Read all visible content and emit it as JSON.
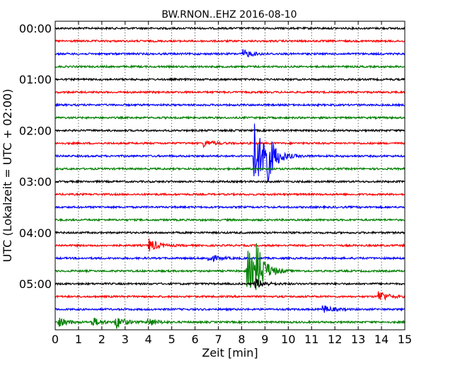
{
  "chart_data": {
    "type": "line",
    "title": "BW.RNON..EHZ 2016-08-10",
    "xlabel": "Zeit  [min]",
    "ylabel": "UTC (Lokalzeit = UTC + 02:00)",
    "xlim": [
      0,
      15
    ],
    "x_ticks": [
      0,
      1,
      2,
      3,
      4,
      5,
      6,
      7,
      8,
      9,
      10,
      11,
      12,
      13,
      14,
      15
    ],
    "y_tick_labels": [
      "00:00",
      "01:00",
      "02:00",
      "03:00",
      "04:00",
      "05:00"
    ],
    "grid": "vertical dotted",
    "colors": [
      "#000000",
      "#ff0000",
      "#0000ff",
      "#008000"
    ],
    "trace_interval_minutes": 15,
    "traces": [
      {
        "start": "00:00",
        "color": "#000000",
        "events": []
      },
      {
        "start": "00:15",
        "color": "#ff0000",
        "events": []
      },
      {
        "start": "00:30",
        "color": "#0000ff",
        "events": [
          {
            "time_min": 8.1,
            "amplitude": 0.3
          }
        ]
      },
      {
        "start": "00:45",
        "color": "#008000",
        "events": []
      },
      {
        "start": "01:00",
        "color": "#000000",
        "events": []
      },
      {
        "start": "01:15",
        "color": "#ff0000",
        "events": []
      },
      {
        "start": "01:30",
        "color": "#0000ff",
        "events": []
      },
      {
        "start": "01:45",
        "color": "#008000",
        "events": []
      },
      {
        "start": "02:00",
        "color": "#000000",
        "events": []
      },
      {
        "start": "02:15",
        "color": "#ff0000",
        "events": [
          {
            "time_min": 6.4,
            "amplitude": 0.25
          }
        ]
      },
      {
        "start": "02:30",
        "color": "#0000ff",
        "events": [
          {
            "time_min": 8.55,
            "amplitude": 2.7
          },
          {
            "time_min": 8.95,
            "amplitude": 2.4
          }
        ]
      },
      {
        "start": "02:45",
        "color": "#008000",
        "events": []
      },
      {
        "start": "03:00",
        "color": "#000000",
        "events": []
      },
      {
        "start": "03:15",
        "color": "#ff0000",
        "events": []
      },
      {
        "start": "03:30",
        "color": "#0000ff",
        "events": []
      },
      {
        "start": "03:45",
        "color": "#008000",
        "events": []
      },
      {
        "start": "04:00",
        "color": "#000000",
        "events": []
      },
      {
        "start": "04:15",
        "color": "#ff0000",
        "events": [
          {
            "time_min": 4.05,
            "amplitude": 0.5
          }
        ]
      },
      {
        "start": "04:30",
        "color": "#0000ff",
        "events": [
          {
            "time_min": 6.6,
            "amplitude": 0.3
          }
        ]
      },
      {
        "start": "04:45",
        "color": "#008000",
        "events": [
          {
            "time_min": 8.25,
            "amplitude": 1.8
          },
          {
            "time_min": 8.65,
            "amplitude": 1.6
          }
        ]
      },
      {
        "start": "05:00",
        "color": "#000000",
        "events": [
          {
            "time_min": 8.6,
            "amplitude": 0.4
          }
        ]
      },
      {
        "start": "05:15",
        "color": "#ff0000",
        "events": [
          {
            "time_min": 13.9,
            "amplitude": 0.45
          }
        ]
      },
      {
        "start": "05:30",
        "color": "#0000ff",
        "events": [
          {
            "time_min": 11.5,
            "amplitude": 0.3
          }
        ]
      },
      {
        "start": "05:45",
        "color": "#008000",
        "events": [
          {
            "time_min": 0.15,
            "amplitude": 0.35
          },
          {
            "time_min": 1.6,
            "amplitude": 0.35
          },
          {
            "time_min": 2.6,
            "amplitude": 0.5
          },
          {
            "time_min": 4.0,
            "amplitude": 0.3
          }
        ]
      }
    ]
  }
}
